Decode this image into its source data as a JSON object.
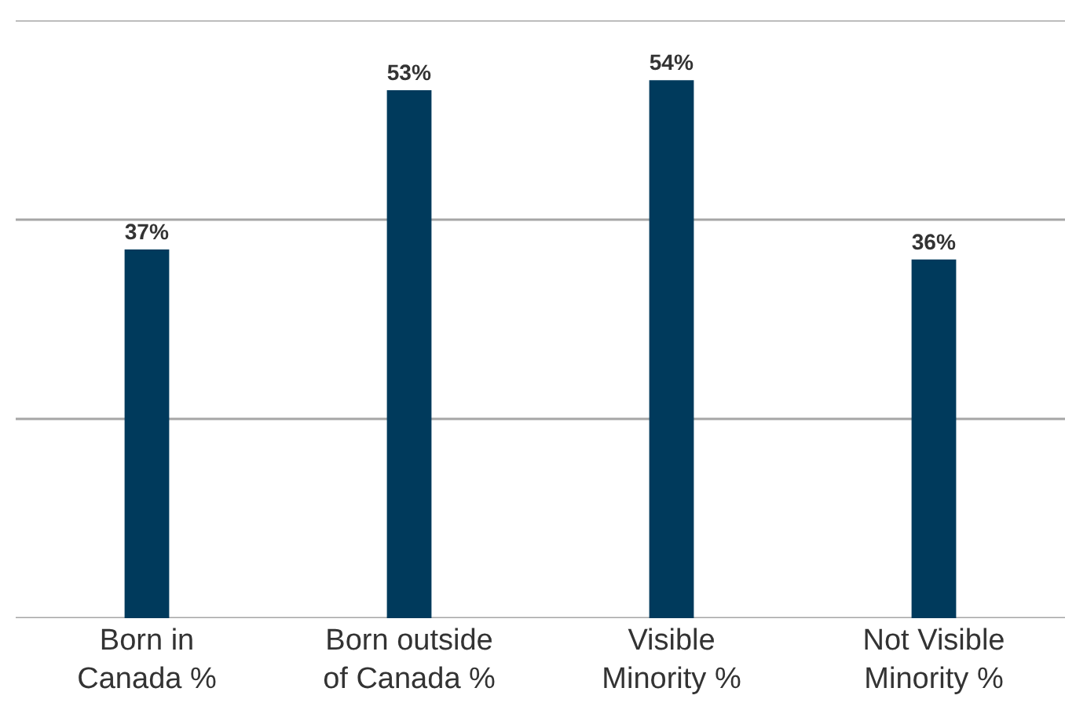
{
  "chart_data": {
    "type": "bar",
    "categories": [
      "Born in Canada %",
      "Born outside of Canada %",
      "Visible Minority %",
      "Not Visible Minority %"
    ],
    "values": [
      37,
      53,
      54,
      36
    ],
    "color": "#003a5c",
    "value_labels": [
      "37%",
      "53%",
      "54%",
      "36%"
    ],
    "ylim": [
      0,
      60
    ],
    "yticks": [
      {
        "value": 0,
        "label": null
      },
      {
        "value": 20,
        "label": null
      },
      {
        "value": 40,
        "label": null
      },
      {
        "value": 60,
        "label": null
      }
    ],
    "grid": "y",
    "tick_labels": "x"
  }
}
